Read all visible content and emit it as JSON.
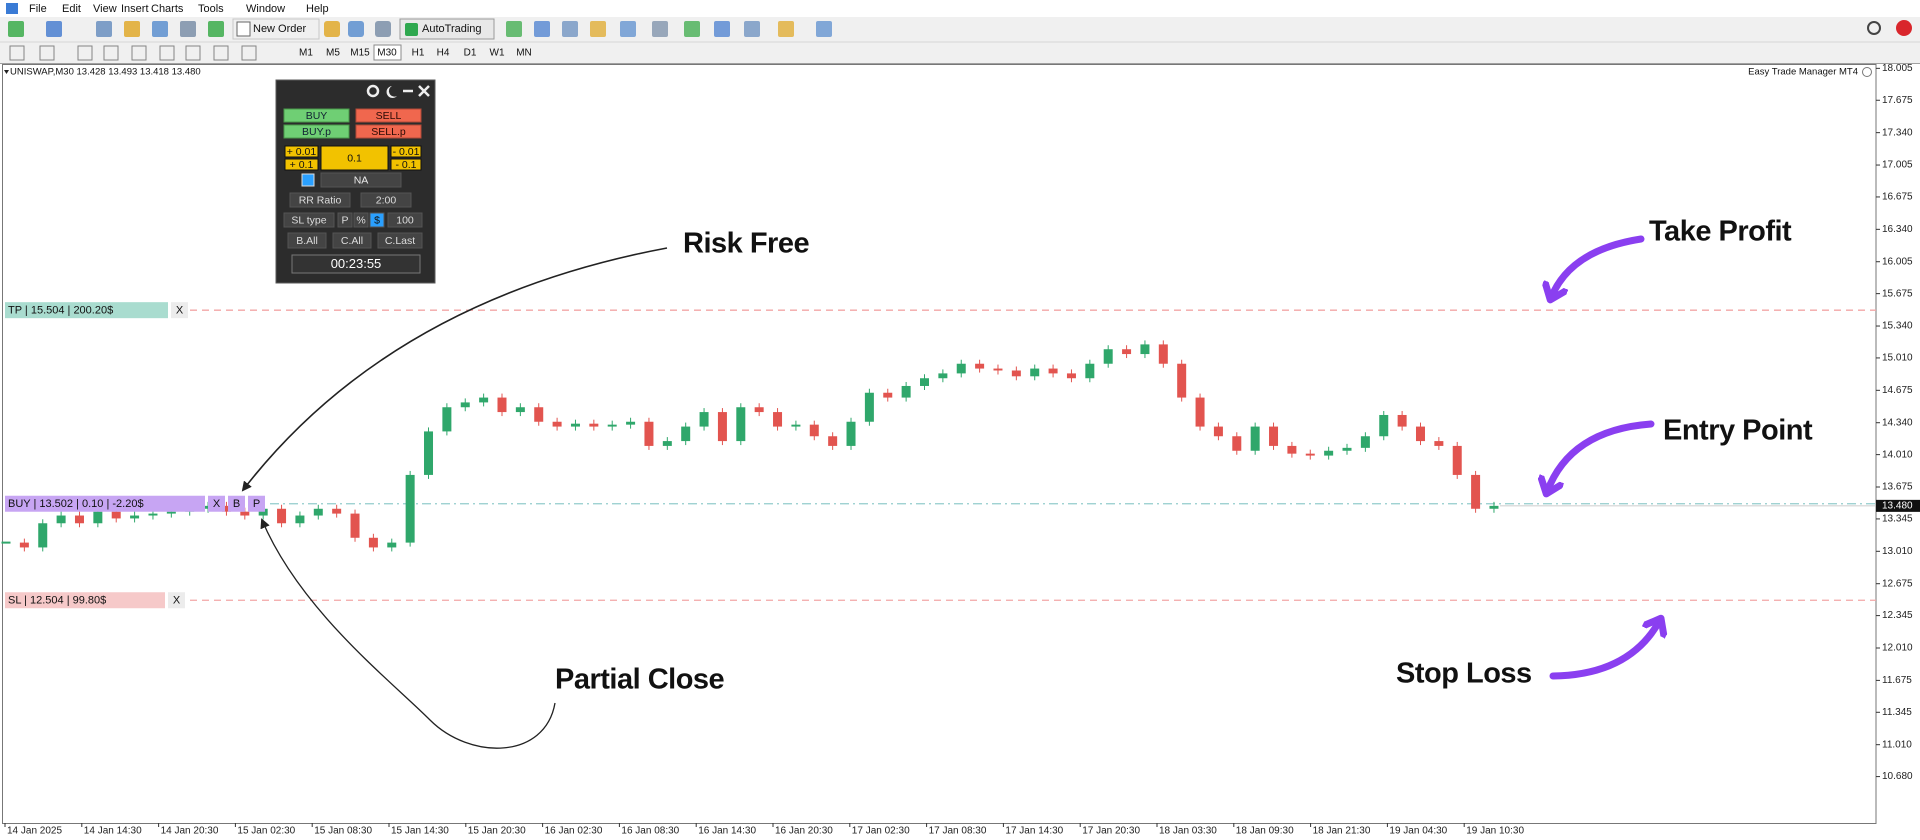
{
  "menu": {
    "items": [
      "File",
      "Edit",
      "View",
      "Insert",
      "Charts",
      "Tools",
      "Window",
      "Help"
    ]
  },
  "toolbar": {
    "new_order": "New Order",
    "autotrading": "AutoTrading",
    "timeframes": [
      "M1",
      "M5",
      "M15",
      "M30",
      "H1",
      "H4",
      "D1",
      "W1",
      "MN"
    ]
  },
  "chart": {
    "type": "candlestick",
    "symbol_info": "UNISWAP,M30  13.428 13.493 13.418 13.480",
    "expert": "Easy Trade Manager MT4",
    "up_color": "#2fa76b",
    "down_color": "#e2544f",
    "ylim": [
      10.2,
      18.05
    ],
    "yticks": [
      18.005,
      17.675,
      {
        "value": 17.34,
        "label": "17.340"
      },
      17.005,
      16.675,
      {
        "value": 16.34,
        "label": "16.340"
      },
      16.005,
      15.675,
      {
        "value": 15.34,
        "label": "15.340"
      },
      {
        "value": 15.01,
        "label": "15.010"
      },
      14.675,
      {
        "value": 14.34,
        "label": "14.340"
      },
      {
        "value": 14.01,
        "label": "14.010"
      },
      13.675,
      13.345,
      {
        "value": 13.01,
        "label": "13.010"
      },
      12.675,
      12.345,
      {
        "value": 12.01,
        "label": "12.010"
      },
      11.675,
      11.345,
      {
        "value": 11.01,
        "label": "11.010"
      },
      {
        "value": 10.68,
        "label": "10.680"
      }
    ],
    "x_labels": [
      "14 Jan 2025",
      "14 Jan 14:30",
      "14 Jan 20:30",
      "15 Jan 02:30",
      "15 Jan 08:30",
      "15 Jan 14:30",
      "15 Jan 20:30",
      "16 Jan 02:30",
      "16 Jan 08:30",
      "16 Jan 14:30",
      "16 Jan 20:30",
      "17 Jan 02:30",
      "17 Jan 08:30",
      "17 Jan 14:30",
      "17 Jan 20:30",
      "18 Jan 03:30",
      "18 Jan 09:30",
      "18 Jan 21:30",
      "19 Jan 04:30",
      "19 Jan 10:30"
    ],
    "closes": [
      13.1,
      13.05,
      13.3,
      13.38,
      13.3,
      13.42,
      13.35,
      13.38,
      13.4,
      13.42,
      13.45,
      13.48,
      13.42,
      13.38,
      13.45,
      13.3,
      13.38,
      13.45,
      13.4,
      13.15,
      13.05,
      13.1,
      13.8,
      14.25,
      14.5,
      14.55,
      14.6,
      14.45,
      14.5,
      14.35,
      14.3,
      14.33,
      14.3,
      14.32,
      14.35,
      14.1,
      14.15,
      14.3,
      14.45,
      14.15,
      14.5,
      14.45,
      14.3,
      14.32,
      14.2,
      14.1,
      14.35,
      14.65,
      14.6,
      14.72,
      14.8,
      14.85,
      14.95,
      14.9,
      14.88,
      14.82,
      14.9,
      14.85,
      14.8,
      14.95,
      15.1,
      15.05,
      15.15,
      14.95,
      14.6,
      14.3,
      14.2,
      14.05,
      14.3,
      14.1,
      14.02,
      14.0,
      14.05,
      14.08,
      14.2,
      14.42,
      14.3,
      14.15,
      14.1,
      13.8,
      13.45,
      13.48
    ],
    "current_price": {
      "value": 13.48,
      "label": "13.480"
    },
    "levels": [
      {
        "value": 15.504,
        "label": "TP | 15.504 | 200.20$",
        "buttons": [
          "X"
        ],
        "color": "#a9dccf",
        "line_color": "#f2a6a6"
      },
      {
        "value": 13.502,
        "label": "BUY | 13.502 | 0.10 | -2.20$",
        "buttons": [
          "X",
          "B",
          "P"
        ],
        "color": "#c7a5f3",
        "line_color": "#93cccc"
      },
      {
        "value": 12.504,
        "label": "SL | 12.504 | 99.80$",
        "buttons": [
          "X"
        ],
        "color": "#f6c9c9",
        "line_color": "#f2a6a6"
      }
    ]
  },
  "panel": {
    "buy": "BUY",
    "sell": "SELL",
    "buy_pending": "BUY.p",
    "sell_pending": "SELL.p",
    "lot_plus": [
      "+ 0.01",
      "+ 0.1"
    ],
    "lot": "0.1",
    "lot_minus": [
      "- 0.01",
      "- 0.1"
    ],
    "mode": "NA",
    "rr_label": "RR Ratio",
    "rr_value": "2:00",
    "sl_type_label": "SL type",
    "sl_types": [
      "P",
      "%",
      "$"
    ],
    "sl_value": "100",
    "close_buttons": [
      "B.All",
      "C.All",
      "C.Last"
    ],
    "timer": "00:23:55"
  },
  "annotations": [
    "Risk Free",
    "Partial Close",
    "Take Profit",
    "Entry Point",
    "Stop Loss"
  ]
}
